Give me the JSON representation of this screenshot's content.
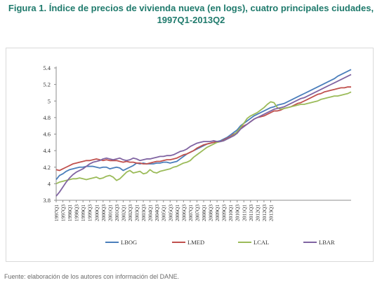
{
  "figure": {
    "title_line1": "Figura 1. Índice de precios de vivienda nueva (en logs), cuatro principales ciudades,",
    "title_line2": "1997Q1-2013Q2",
    "source": "Fuente: elaboración de los autores con información del DANE."
  },
  "chart_data": {
    "type": "line",
    "title": "",
    "xlabel": "",
    "ylabel": "",
    "ylim": [
      3.8,
      5.4
    ],
    "yticks": [
      "3.8",
      "4",
      "4.2",
      "4.4",
      "4.6",
      "4.8",
      "5",
      "5.2",
      "5.4"
    ],
    "x_tick_labels": [
      "1997Q1",
      "1997Q3",
      "1998Q1",
      "1998Q3",
      "1999Q1",
      "1999Q3",
      "2000Q1",
      "2000Q3",
      "2001Q1",
      "2001Q3",
      "2002Q1",
      "2002Q3",
      "2003Q1",
      "2003Q3",
      "2004Q1",
      "2004Q3",
      "2005Q1",
      "2005Q3",
      "2006Q1",
      "2006Q3",
      "2007Q1",
      "2007Q3",
      "2008Q1",
      "2008Q3",
      "2009Q1",
      "2009Q3",
      "2010Q1",
      "2010Q3",
      "2011Q1",
      "2011Q3",
      "2012Q1",
      "2012Q3",
      "2013Q1"
    ],
    "legend_position": "bottom",
    "grid": false,
    "series": [
      {
        "name": "LBOG",
        "color": "#4a7ebb",
        "values": [
          4.05,
          4.1,
          4.12,
          4.15,
          4.17,
          4.18,
          4.19,
          4.2,
          4.2,
          4.21,
          4.21,
          4.21,
          4.2,
          4.19,
          4.2,
          4.2,
          4.18,
          4.19,
          4.2,
          4.19,
          4.16,
          4.18,
          4.2,
          4.22,
          4.25,
          4.24,
          4.25,
          4.24,
          4.24,
          4.24,
          4.25,
          4.25,
          4.26,
          4.26,
          4.25,
          4.26,
          4.27,
          4.3,
          4.33,
          4.36,
          4.38,
          4.4,
          4.42,
          4.44,
          4.46,
          4.48,
          4.49,
          4.5,
          4.51,
          4.52,
          4.54,
          4.56,
          4.59,
          4.62,
          4.65,
          4.7,
          4.73,
          4.76,
          4.79,
          4.82,
          4.84,
          4.86,
          4.88,
          4.9,
          4.92,
          4.93,
          4.95,
          4.96,
          4.97,
          4.99,
          5.01,
          5.03,
          5.05,
          5.07,
          5.09,
          5.11,
          5.13,
          5.15,
          5.17,
          5.19,
          5.21,
          5.23,
          5.25,
          5.27,
          5.3,
          5.32,
          5.34,
          5.36,
          5.38
        ]
      },
      {
        "name": "LMED",
        "color": "#c0504d",
        "values": [
          4.17,
          4.16,
          4.18,
          4.2,
          4.22,
          4.24,
          4.25,
          4.26,
          4.27,
          4.28,
          4.28,
          4.29,
          4.3,
          4.29,
          4.28,
          4.29,
          4.28,
          4.28,
          4.28,
          4.27,
          4.26,
          4.27,
          4.26,
          4.26,
          4.25,
          4.25,
          4.24,
          4.24,
          4.25,
          4.26,
          4.27,
          4.27,
          4.28,
          4.29,
          4.29,
          4.3,
          4.31,
          4.33,
          4.35,
          4.36,
          4.38,
          4.4,
          4.43,
          4.45,
          4.47,
          4.48,
          4.49,
          4.5,
          4.5,
          4.51,
          4.53,
          4.55,
          4.57,
          4.6,
          4.62,
          4.67,
          4.7,
          4.72,
          4.75,
          4.78,
          4.8,
          4.81,
          4.82,
          4.84,
          4.86,
          4.88,
          4.88,
          4.89,
          4.91,
          4.92,
          4.93,
          4.95,
          4.97,
          4.98,
          5.0,
          5.02,
          5.04,
          5.06,
          5.08,
          5.09,
          5.11,
          5.12,
          5.13,
          5.14,
          5.15,
          5.16,
          5.16,
          5.17,
          5.17
        ]
      },
      {
        "name": "LCAL",
        "color": "#9bbb59",
        "values": [
          4.0,
          4.02,
          4.03,
          4.04,
          4.05,
          4.06,
          4.06,
          4.07,
          4.06,
          4.05,
          4.06,
          4.07,
          4.08,
          4.06,
          4.07,
          4.09,
          4.1,
          4.08,
          4.04,
          4.06,
          4.1,
          4.14,
          4.16,
          4.13,
          4.14,
          4.15,
          4.12,
          4.13,
          4.17,
          4.14,
          4.13,
          4.15,
          4.16,
          4.17,
          4.18,
          4.2,
          4.21,
          4.23,
          4.25,
          4.26,
          4.28,
          4.32,
          4.35,
          4.38,
          4.41,
          4.44,
          4.46,
          4.48,
          4.5,
          4.51,
          4.52,
          4.54,
          4.56,
          4.59,
          4.63,
          4.68,
          4.73,
          4.79,
          4.82,
          4.84,
          4.86,
          4.89,
          4.92,
          4.96,
          4.99,
          4.98,
          4.92,
          4.9,
          4.91,
          4.92,
          4.93,
          4.94,
          4.95,
          4.96,
          4.96,
          4.97,
          4.98,
          4.99,
          5.0,
          5.02,
          5.03,
          5.04,
          5.05,
          5.06,
          5.06,
          5.07,
          5.08,
          5.09,
          5.11
        ]
      },
      {
        "name": "LBAR",
        "color": "#8064a2",
        "values": [
          3.85,
          3.9,
          3.96,
          4.02,
          4.07,
          4.11,
          4.14,
          4.16,
          4.18,
          4.21,
          4.24,
          4.26,
          4.27,
          4.28,
          4.3,
          4.31,
          4.3,
          4.29,
          4.3,
          4.31,
          4.29,
          4.28,
          4.29,
          4.31,
          4.3,
          4.28,
          4.29,
          4.3,
          4.3,
          4.31,
          4.32,
          4.33,
          4.33,
          4.34,
          4.34,
          4.35,
          4.37,
          4.39,
          4.4,
          4.42,
          4.45,
          4.47,
          4.49,
          4.5,
          4.51,
          4.51,
          4.51,
          4.52,
          4.51,
          4.51,
          4.52,
          4.54,
          4.56,
          4.58,
          4.61,
          4.66,
          4.69,
          4.72,
          4.75,
          4.78,
          4.8,
          4.82,
          4.84,
          4.86,
          4.88,
          4.9,
          4.91,
          4.92,
          4.93,
          4.95,
          4.97,
          4.99,
          5.01,
          5.03,
          5.04,
          5.06,
          5.08,
          5.1,
          5.12,
          5.14,
          5.16,
          5.18,
          5.2,
          5.22,
          5.24,
          5.26,
          5.28,
          5.3,
          5.32
        ]
      }
    ]
  }
}
